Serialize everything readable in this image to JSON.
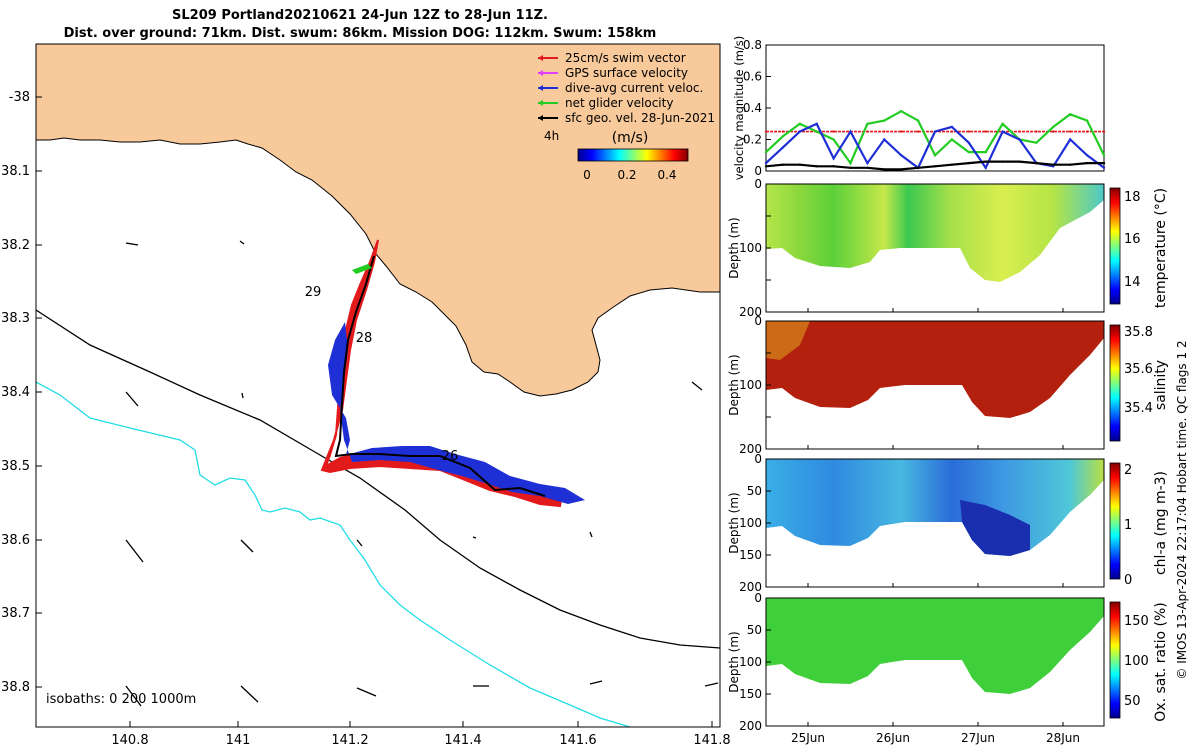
{
  "header": {
    "line1": "SL209 Portland20210621 24-Jun 12Z to 28-Jun 11Z.",
    "line2": "Dist. over ground: 71km. Dist. swum: 86km. Mission DOG: 112km. Swum: 158km"
  },
  "map": {
    "lon_ticks": [
      "140.8",
      "141",
      "141.2",
      "141.4",
      "141.6",
      "141.8"
    ],
    "lat_ticks": [
      "-38",
      "38.1",
      "38.2",
      "38.3",
      "38.4",
      "38.5",
      "38.6",
      "38.7",
      "38.8"
    ],
    "isobath_label": "isobaths: 0   200  1000m",
    "day_labels": [
      "29",
      "28",
      "26"
    ],
    "legend": [
      {
        "label": "25cm/s swim vector",
        "color": "#e31a1c"
      },
      {
        "label": "GPS surface velocity",
        "color": "#e040fb"
      },
      {
        "label": "dive-avg current veloc.",
        "color": "#1f2fd6"
      },
      {
        "label": "net glider velocity",
        "color": "#22cc22"
      },
      {
        "label": "sfc geo. vel. 28-Jun-2021",
        "color": "#000000"
      }
    ],
    "duration_label": "4h",
    "colorbar_title": "(m/s)",
    "colorbar_ticks": [
      "0",
      "0.2",
      "0.4"
    ],
    "land_color": "#f8c99a",
    "shelf_200_color": "#000000",
    "shelf_1000_color": "#22dde6"
  },
  "chart_data": [
    {
      "type": "line",
      "ylabel": "velocity magnitude (m/s)",
      "ylim": [
        0,
        0.8
      ],
      "y_ticks": [
        "0",
        "0.2",
        "0.4",
        "0.6",
        "0.8"
      ],
      "x": [
        0,
        0.05,
        0.1,
        0.15,
        0.2,
        0.25,
        0.3,
        0.35,
        0.4,
        0.45,
        0.5,
        0.55,
        0.6,
        0.65,
        0.7,
        0.75,
        0.8,
        0.85,
        0.9,
        0.95,
        1.0
      ],
      "series": [
        {
          "color": "#e31a1c",
          "values": [
            0.25,
            0.25,
            0.25,
            0.25,
            0.25,
            0.25,
            0.25,
            0.25,
            0.25,
            0.25,
            0.25,
            0.25,
            0.25,
            0.25,
            0.25,
            0.25,
            0.25,
            0.25,
            0.25,
            0.25,
            0.25
          ]
        },
        {
          "color": "#22cc22",
          "values": [
            0.12,
            0.22,
            0.3,
            0.25,
            0.2,
            0.05,
            0.3,
            0.32,
            0.38,
            0.32,
            0.1,
            0.2,
            0.12,
            0.12,
            0.3,
            0.2,
            0.18,
            0.28,
            0.36,
            0.32,
            0.1
          ]
        },
        {
          "color": "#1f2fd6",
          "values": [
            0.05,
            0.15,
            0.25,
            0.3,
            0.08,
            0.25,
            0.05,
            0.2,
            0.1,
            0.02,
            0.25,
            0.28,
            0.18,
            0.02,
            0.25,
            0.2,
            0.05,
            0.03,
            0.2,
            0.1,
            0.02
          ]
        },
        {
          "color": "#000000",
          "values": [
            0.03,
            0.04,
            0.04,
            0.03,
            0.03,
            0.02,
            0.02,
            0.01,
            0.01,
            0.02,
            0.03,
            0.04,
            0.05,
            0.06,
            0.06,
            0.06,
            0.05,
            0.04,
            0.04,
            0.05,
            0.05
          ]
        }
      ]
    },
    {
      "type": "heatmap",
      "ylabel": "Depth (m)",
      "colorbar_label": "temperature (°C)",
      "colorbar_ticks": [
        "14",
        "16",
        "18"
      ]
    },
    {
      "type": "heatmap",
      "ylabel": "Depth (m)",
      "colorbar_label": "salinity",
      "colorbar_ticks": [
        "35.4",
        "35.6",
        "35.8"
      ]
    },
    {
      "type": "heatmap",
      "ylabel": "Depth (m)",
      "colorbar_label": "chl-a (mg m-3)",
      "colorbar_ticks": [
        "0",
        "1",
        "2"
      ]
    },
    {
      "type": "heatmap",
      "ylabel": "Depth (m)",
      "colorbar_label": "Ox. sat. ratio (%)",
      "colorbar_ticks": [
        "50",
        "100",
        "150"
      ]
    }
  ],
  "depth_ticks": [
    "0",
    "50",
    "100",
    "150",
    "200"
  ],
  "time_ticks": [
    "25Jun",
    "26Jun",
    "27Jun",
    "28Jun"
  ],
  "side_caption": "© IMOS 13-Apr-2024 22:17:04 Hobart time. QC flags 1  2"
}
